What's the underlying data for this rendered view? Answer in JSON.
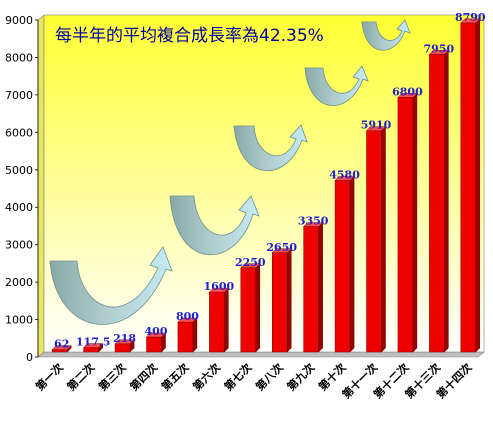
{
  "chart_data": {
    "type": "bar",
    "title": "每半年的平均複合成長率為42.35%",
    "xlabel": "",
    "ylabel": "",
    "ylim": [
      0,
      9000
    ],
    "yticks": [
      0,
      1000,
      2000,
      3000,
      4000,
      5000,
      6000,
      7000,
      8000,
      9000
    ],
    "categories": [
      "第一次",
      "第二次",
      "第三次",
      "第四次",
      "第五次",
      "第六次",
      "第七次",
      "第八次",
      "第九次",
      "第十次",
      "第十一次",
      "第十二次",
      "第十三次",
      "第十四次"
    ],
    "values": [
      62,
      117.5,
      218,
      400,
      800,
      1600,
      2250,
      2650,
      3350,
      4580,
      5910,
      6800,
      7950,
      8790
    ],
    "data_labels": [
      "62",
      "117.5",
      "218",
      "400",
      "800",
      "1600",
      "2250",
      "2650",
      "3350",
      "4580",
      "5910",
      "6800",
      "7950",
      "8790"
    ],
    "grid": false,
    "legend": "none",
    "colors": {
      "bar": "#ee0000",
      "bar_dark": "#990000",
      "bar_top": "#ff5050",
      "plot_gradient_top": "#ffff33",
      "plot_gradient_bottom": "#ffffff",
      "data_label": "#1f1fd0",
      "title": "#0000a0",
      "arrow_dark": "#88a8a8",
      "arrow_light": "#c4ecf4"
    }
  }
}
